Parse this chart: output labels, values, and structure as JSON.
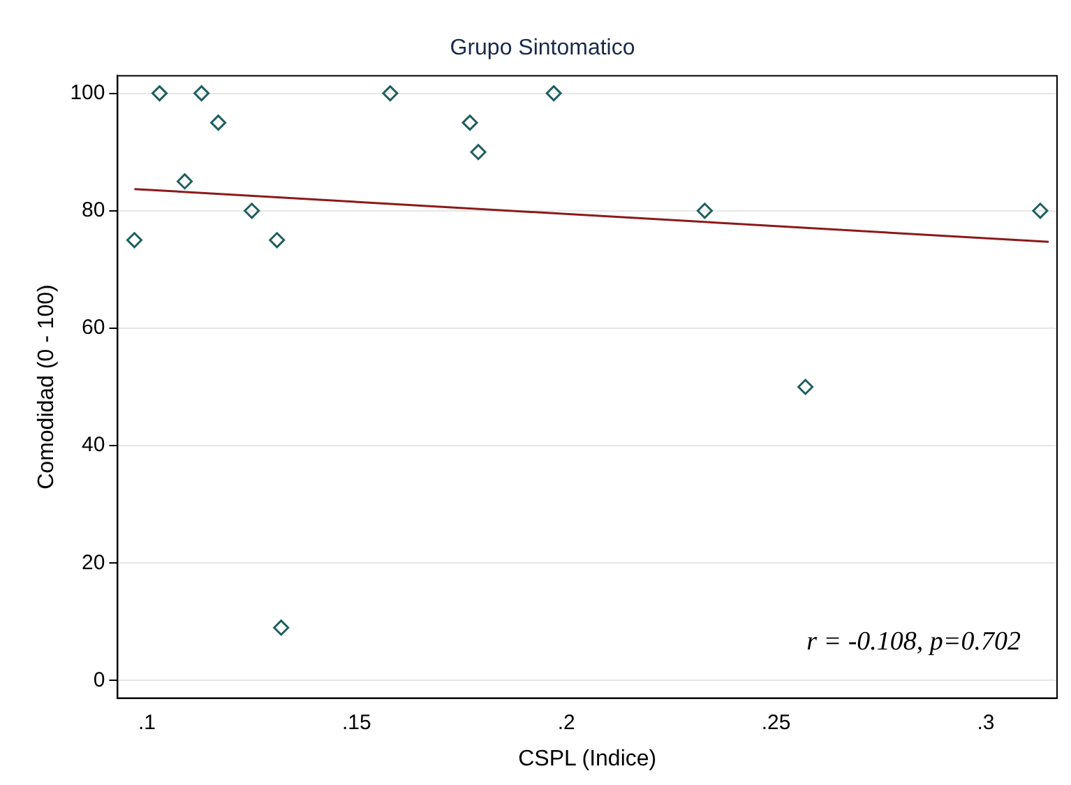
{
  "chart_data": {
    "type": "scatter",
    "title": "Grupo Sintomatico",
    "xlabel": "CSPL (Indice)",
    "ylabel": "Comodidad (0 - 100)",
    "x": [
      0.097,
      0.103,
      0.109,
      0.113,
      0.117,
      0.125,
      0.131,
      0.132,
      0.158,
      0.177,
      0.179,
      0.197,
      0.233,
      0.257,
      0.313
    ],
    "series": [
      {
        "color": "#1f5f5f",
        "marker": "diamond",
        "values": [
          75,
          100,
          85,
          100,
          95,
          80,
          75,
          9,
          100,
          95,
          90,
          100,
          80,
          50,
          80
        ]
      },
      {
        "type": "line",
        "color": "#8b1a1a",
        "x": [
          0.097,
          0.315
        ],
        "values": [
          83.7,
          74.7
        ],
        "marker": "none"
      }
    ],
    "xlim": [
      0.093,
      0.317
    ],
    "ylim": [
      -3,
      103
    ],
    "xticks": [
      {
        "value": 0.1,
        "label": ".1"
      },
      {
        "value": 0.15,
        "label": ".15"
      },
      {
        "value": 0.2,
        "label": ".2"
      },
      {
        "value": 0.25,
        "label": ".25"
      },
      {
        "value": 0.3,
        "label": ".3"
      }
    ],
    "yticks": [
      0,
      20,
      40,
      60,
      80,
      100
    ],
    "grid": "y",
    "legend": false,
    "annotations": [
      "r = -0.108, p=0.702"
    ]
  }
}
